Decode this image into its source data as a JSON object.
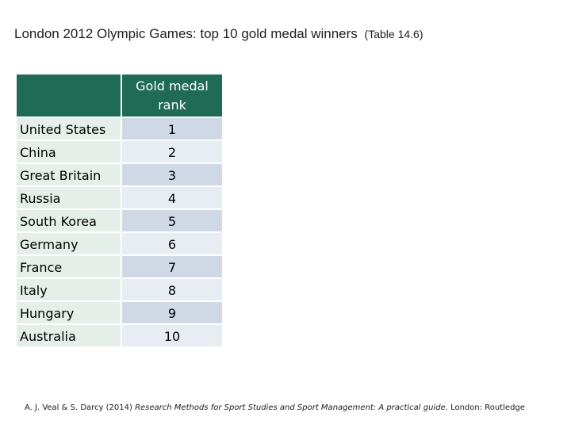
{
  "title": {
    "main": "London 2012 Olympic Games: top 10 gold medal winners",
    "ref": "(Table 14.6)"
  },
  "table": {
    "header_country": "",
    "header_rank": "Gold medal\nrank",
    "rows": [
      {
        "country": "United States",
        "rank": "1"
      },
      {
        "country": "China",
        "rank": "2"
      },
      {
        "country": "Great Britain",
        "rank": "3"
      },
      {
        "country": "Russia",
        "rank": "4"
      },
      {
        "country": "South Korea",
        "rank": "5"
      },
      {
        "country": "Germany",
        "rank": "6"
      },
      {
        "country": "France",
        "rank": "7"
      },
      {
        "country": "Italy",
        "rank": "8"
      },
      {
        "country": "Hungary",
        "rank": "9"
      },
      {
        "country": "Australia",
        "rank": "10"
      }
    ]
  },
  "citation": {
    "authors": "A. J. Veal & S. Darcy (2014)",
    "book_title": "Research Methods for Sport Studies and Sport Management: A practical guide.",
    "publisher": "London: Routledge"
  },
  "colors": {
    "header_green": "#1f6b56",
    "country_cell": "#e5eee9",
    "rank_cell_dark": "#d0d8e6",
    "rank_cell_light": "#e8ecf3"
  }
}
